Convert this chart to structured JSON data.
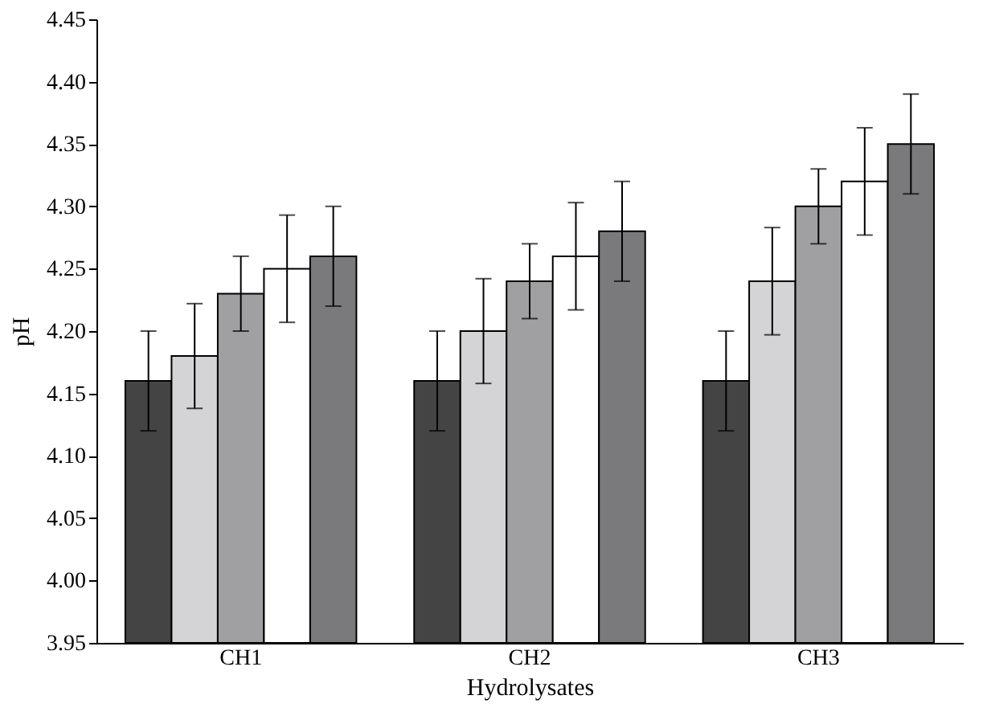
{
  "chart_data": {
    "type": "bar",
    "xlabel": "Hydrolysates",
    "ylabel": "pH",
    "categories": [
      "CH1",
      "CH2",
      "CH3"
    ],
    "series": [
      {
        "color": "#444444",
        "values": [
          4.16,
          4.16,
          4.16
        ],
        "errors": [
          0.04,
          0.04,
          0.04
        ]
      },
      {
        "color": "#d4d4d6",
        "values": [
          4.18,
          4.2,
          4.24
        ],
        "errors": [
          0.042,
          0.042,
          0.043
        ]
      },
      {
        "color": "#a0a0a2",
        "values": [
          4.23,
          4.24,
          4.3
        ],
        "errors": [
          0.03,
          0.03,
          0.03
        ]
      },
      {
        "color": "#ffffff",
        "values": [
          4.25,
          4.26,
          4.32
        ],
        "errors": [
          0.043,
          0.043,
          0.043
        ]
      },
      {
        "color": "#7a7a7c",
        "values": [
          4.26,
          4.28,
          4.35
        ],
        "errors": [
          0.04,
          0.04,
          0.04
        ]
      }
    ],
    "ylim": [
      3.95,
      4.45
    ],
    "yticks": [
      {
        "value": 3.95,
        "label": "3.95"
      },
      {
        "value": 4.0,
        "label": "4.00"
      },
      {
        "value": 4.05,
        "label": "4.05"
      },
      {
        "value": 4.1,
        "label": "4.10"
      },
      {
        "value": 4.15,
        "label": "4.15"
      },
      {
        "value": 4.2,
        "label": "4.20"
      },
      {
        "value": 4.25,
        "label": "4.25"
      },
      {
        "value": 4.3,
        "label": "4.30"
      },
      {
        "value": 4.35,
        "label": "4.35"
      },
      {
        "value": 4.4,
        "label": "4.40"
      },
      {
        "value": 4.45,
        "label": "4.45"
      }
    ],
    "grid": false,
    "legend": false
  }
}
